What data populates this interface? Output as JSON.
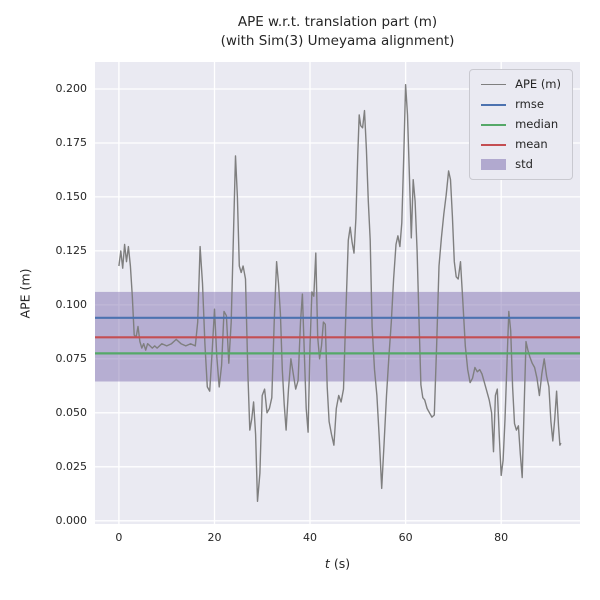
{
  "chart_data": {
    "type": "line",
    "title": "APE w.r.t. translation part (m)",
    "subtitle": "(with Sim(3) Umeyama alignment)",
    "xlabel_var": "t",
    "xlabel_unit": "(s)",
    "ylabel": "APE (m)",
    "xlim": [
      -5,
      96.5
    ],
    "ylim": [
      -0.0015,
      0.2125
    ],
    "xticks": [
      0,
      20,
      40,
      60,
      80
    ],
    "xtick_labels": [
      "0",
      "20",
      "40",
      "60",
      "80"
    ],
    "yticks": [
      0,
      0.025,
      0.05,
      0.075,
      0.1,
      0.125,
      0.15,
      0.175,
      0.2
    ],
    "ytick_labels": [
      "0.000",
      "0.025",
      "0.050",
      "0.075",
      "0.100",
      "0.125",
      "0.150",
      "0.175",
      "0.200"
    ],
    "grid": true,
    "plot_bg": "#eaeaf2",
    "grid_color": "#ffffff",
    "legend_position": "upper right",
    "legend": [
      "APE (m)",
      "rmse",
      "median",
      "mean",
      "std"
    ],
    "ape_series": {
      "name": "APE (m)",
      "color": "#7f7f7f",
      "points": [
        [
          0,
          0.118
        ],
        [
          0.4,
          0.125
        ],
        [
          0.8,
          0.117
        ],
        [
          1.2,
          0.128
        ],
        [
          1.6,
          0.12
        ],
        [
          2,
          0.127
        ],
        [
          2.4,
          0.118
        ],
        [
          2.8,
          0.104
        ],
        [
          3.2,
          0.086
        ],
        [
          3.6,
          0.085
        ],
        [
          4,
          0.09
        ],
        [
          4.4,
          0.083
        ],
        [
          4.8,
          0.08
        ],
        [
          5.2,
          0.082
        ],
        [
          5.6,
          0.079
        ],
        [
          6,
          0.082
        ],
        [
          6.5,
          0.081
        ],
        [
          7,
          0.08
        ],
        [
          7.5,
          0.081
        ],
        [
          8,
          0.08
        ],
        [
          9,
          0.082
        ],
        [
          10,
          0.081
        ],
        [
          11,
          0.082
        ],
        [
          12,
          0.084
        ],
        [
          13,
          0.082
        ],
        [
          14,
          0.081
        ],
        [
          15,
          0.082
        ],
        [
          16,
          0.081
        ],
        [
          16.5,
          0.092
        ],
        [
          17,
          0.127
        ],
        [
          17.5,
          0.11
        ],
        [
          18,
          0.082
        ],
        [
          18.5,
          0.062
        ],
        [
          19,
          0.06
        ],
        [
          19.5,
          0.078
        ],
        [
          20,
          0.098
        ],
        [
          20.5,
          0.076
        ],
        [
          21,
          0.062
        ],
        [
          21.5,
          0.072
        ],
        [
          22,
          0.097
        ],
        [
          22.5,
          0.095
        ],
        [
          23,
          0.073
        ],
        [
          23.5,
          0.092
        ],
        [
          24,
          0.135
        ],
        [
          24.4,
          0.169
        ],
        [
          24.8,
          0.15
        ],
        [
          25.2,
          0.118
        ],
        [
          25.6,
          0.115
        ],
        [
          26,
          0.118
        ],
        [
          26.5,
          0.112
        ],
        [
          27,
          0.068
        ],
        [
          27.4,
          0.042
        ],
        [
          27.8,
          0.047
        ],
        [
          28.2,
          0.055
        ],
        [
          28.6,
          0.04
        ],
        [
          29,
          0.009
        ],
        [
          29.5,
          0.022
        ],
        [
          30,
          0.058
        ],
        [
          30.5,
          0.061
        ],
        [
          31,
          0.05
        ],
        [
          31.5,
          0.052
        ],
        [
          32,
          0.057
        ],
        [
          32.5,
          0.092
        ],
        [
          33,
          0.12
        ],
        [
          33.4,
          0.11
        ],
        [
          33.8,
          0.096
        ],
        [
          34.2,
          0.07
        ],
        [
          34.6,
          0.054
        ],
        [
          35,
          0.042
        ],
        [
          35.5,
          0.061
        ],
        [
          36,
          0.075
        ],
        [
          36.5,
          0.068
        ],
        [
          37,
          0.061
        ],
        [
          37.5,
          0.065
        ],
        [
          38,
          0.092
        ],
        [
          38.4,
          0.105
        ],
        [
          38.8,
          0.078
        ],
        [
          39.2,
          0.052
        ],
        [
          39.6,
          0.041
        ],
        [
          40,
          0.081
        ],
        [
          40.4,
          0.106
        ],
        [
          40.8,
          0.104
        ],
        [
          41.2,
          0.124
        ],
        [
          41.6,
          0.085
        ],
        [
          42,
          0.075
        ],
        [
          42.4,
          0.081
        ],
        [
          42.8,
          0.092
        ],
        [
          43.2,
          0.091
        ],
        [
          43.6,
          0.062
        ],
        [
          44,
          0.046
        ],
        [
          44.5,
          0.04
        ],
        [
          45,
          0.035
        ],
        [
          45.5,
          0.052
        ],
        [
          46,
          0.058
        ],
        [
          46.5,
          0.055
        ],
        [
          47,
          0.061
        ],
        [
          47.5,
          0.097
        ],
        [
          48,
          0.13
        ],
        [
          48.4,
          0.136
        ],
        [
          48.8,
          0.129
        ],
        [
          49.2,
          0.124
        ],
        [
          49.6,
          0.14
        ],
        [
          50,
          0.17
        ],
        [
          50.3,
          0.188
        ],
        [
          50.6,
          0.183
        ],
        [
          51,
          0.182
        ],
        [
          51.4,
          0.19
        ],
        [
          51.8,
          0.172
        ],
        [
          52.2,
          0.148
        ],
        [
          52.6,
          0.13
        ],
        [
          53,
          0.09
        ],
        [
          53.5,
          0.07
        ],
        [
          54,
          0.058
        ],
        [
          54.5,
          0.038
        ],
        [
          55,
          0.015
        ],
        [
          55.5,
          0.036
        ],
        [
          56,
          0.058
        ],
        [
          56.5,
          0.076
        ],
        [
          57,
          0.092
        ],
        [
          57.5,
          0.112
        ],
        [
          58,
          0.128
        ],
        [
          58.4,
          0.132
        ],
        [
          58.8,
          0.127
        ],
        [
          59.2,
          0.138
        ],
        [
          59.6,
          0.168
        ],
        [
          60,
          0.202
        ],
        [
          60.4,
          0.188
        ],
        [
          60.8,
          0.16
        ],
        [
          61.2,
          0.131
        ],
        [
          61.6,
          0.158
        ],
        [
          62,
          0.148
        ],
        [
          62.4,
          0.125
        ],
        [
          62.8,
          0.093
        ],
        [
          63.2,
          0.063
        ],
        [
          63.6,
          0.057
        ],
        [
          64,
          0.056
        ],
        [
          64.5,
          0.052
        ],
        [
          65,
          0.05
        ],
        [
          65.5,
          0.048
        ],
        [
          66,
          0.049
        ],
        [
          66.5,
          0.082
        ],
        [
          67,
          0.118
        ],
        [
          67.5,
          0.131
        ],
        [
          68,
          0.142
        ],
        [
          68.5,
          0.151
        ],
        [
          69,
          0.162
        ],
        [
          69.4,
          0.158
        ],
        [
          69.8,
          0.141
        ],
        [
          70.2,
          0.12
        ],
        [
          70.6,
          0.113
        ],
        [
          71,
          0.112
        ],
        [
          71.5,
          0.12
        ],
        [
          72,
          0.101
        ],
        [
          72.5,
          0.081
        ],
        [
          73,
          0.07
        ],
        [
          73.5,
          0.064
        ],
        [
          74,
          0.066
        ],
        [
          74.5,
          0.071
        ],
        [
          75,
          0.069
        ],
        [
          75.5,
          0.07
        ],
        [
          76,
          0.068
        ],
        [
          76.5,
          0.064
        ],
        [
          77,
          0.06
        ],
        [
          77.5,
          0.056
        ],
        [
          78,
          0.05
        ],
        [
          78.4,
          0.032
        ],
        [
          78.8,
          0.058
        ],
        [
          79.2,
          0.061
        ],
        [
          79.6,
          0.04
        ],
        [
          80,
          0.021
        ],
        [
          80.4,
          0.028
        ],
        [
          80.8,
          0.047
        ],
        [
          81.2,
          0.072
        ],
        [
          81.6,
          0.097
        ],
        [
          82,
          0.088
        ],
        [
          82.4,
          0.062
        ],
        [
          82.8,
          0.045
        ],
        [
          83.2,
          0.042
        ],
        [
          83.6,
          0.044
        ],
        [
          84,
          0.031
        ],
        [
          84.4,
          0.02
        ],
        [
          84.8,
          0.052
        ],
        [
          85.2,
          0.083
        ],
        [
          85.6,
          0.079
        ],
        [
          86,
          0.076
        ],
        [
          86.5,
          0.073
        ],
        [
          87,
          0.071
        ],
        [
          87.5,
          0.066
        ],
        [
          88,
          0.058
        ],
        [
          88.5,
          0.068
        ],
        [
          89,
          0.075
        ],
        [
          89.5,
          0.067
        ],
        [
          90,
          0.062
        ],
        [
          90.4,
          0.046
        ],
        [
          90.8,
          0.037
        ],
        [
          91.2,
          0.047
        ],
        [
          91.6,
          0.06
        ],
        [
          92,
          0.044
        ],
        [
          92.3,
          0.035
        ],
        [
          92.5,
          0.036
        ]
      ]
    },
    "stats": {
      "rmse": {
        "label": "rmse",
        "value": 0.094,
        "color": "#4c72b0"
      },
      "median": {
        "label": "median",
        "value": 0.0775,
        "color": "#55a868"
      },
      "mean": {
        "label": "mean",
        "value": 0.085,
        "color": "#c44e52"
      },
      "std": {
        "label": "std",
        "band": [
          0.0645,
          0.106
        ],
        "color": "#8172b2"
      }
    }
  }
}
